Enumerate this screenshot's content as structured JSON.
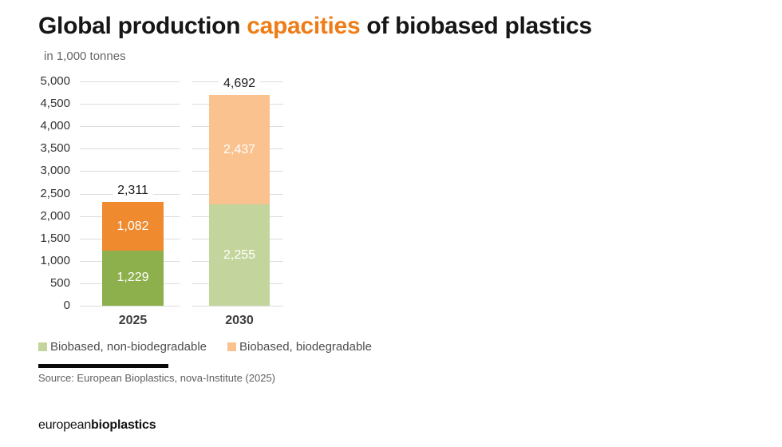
{
  "header": {
    "title_prefix": "Global production ",
    "title_highlight": "capacities",
    "title_suffix": " of biobased plastics",
    "subtitle": "in 1,000 tonnes"
  },
  "chart_data": {
    "type": "bar",
    "stacked": true,
    "title": "Global production capacities of biobased plastics",
    "subtitle": "in 1,000 tonnes",
    "unit": "1,000 tonnes",
    "categories": [
      "2025",
      "2030"
    ],
    "series": [
      {
        "name": "Biobased, non-biodegradable",
        "values": [
          1229,
          2255
        ],
        "colors": [
          "#8db04c",
          "#c3d59c"
        ]
      },
      {
        "name": "Biobased, biodegradable",
        "values": [
          1082,
          2437
        ],
        "colors": [
          "#ef8a2f",
          "#f9c28e"
        ]
      }
    ],
    "values_display": [
      [
        "1,229",
        "2,255"
      ],
      [
        "1,082",
        "2,437"
      ]
    ],
    "totals": [
      2311,
      4692
    ],
    "totals_display": [
      "2,311",
      "4,692"
    ],
    "ylim": [
      0,
      5000
    ],
    "yticks": [
      0,
      500,
      1000,
      1500,
      2000,
      2500,
      3000,
      3500,
      4000,
      4500,
      5000
    ],
    "ytick_labels": [
      "0",
      "500",
      "1,000",
      "1,500",
      "2,000",
      "2,500",
      "3,000",
      "3,500",
      "4,000",
      "4,500",
      "5,000"
    ],
    "grid": "on",
    "legend_position": "bottom"
  },
  "legend": {
    "items": [
      {
        "label": "Biobased, non-biodegradable",
        "color": "#c3d59c"
      },
      {
        "label": "Biobased, biodegradable",
        "color": "#f9c28e"
      }
    ]
  },
  "source": {
    "text": "Source: European Bioplastics, nova-Institute (2025)"
  },
  "footer": {
    "logo_regular": "european",
    "logo_bold": "bioplastics"
  },
  "colors": {
    "title_highlight": "#ee7d17",
    "gridline": "#dcdcdc",
    "bar_value_label": "#ffffff"
  }
}
